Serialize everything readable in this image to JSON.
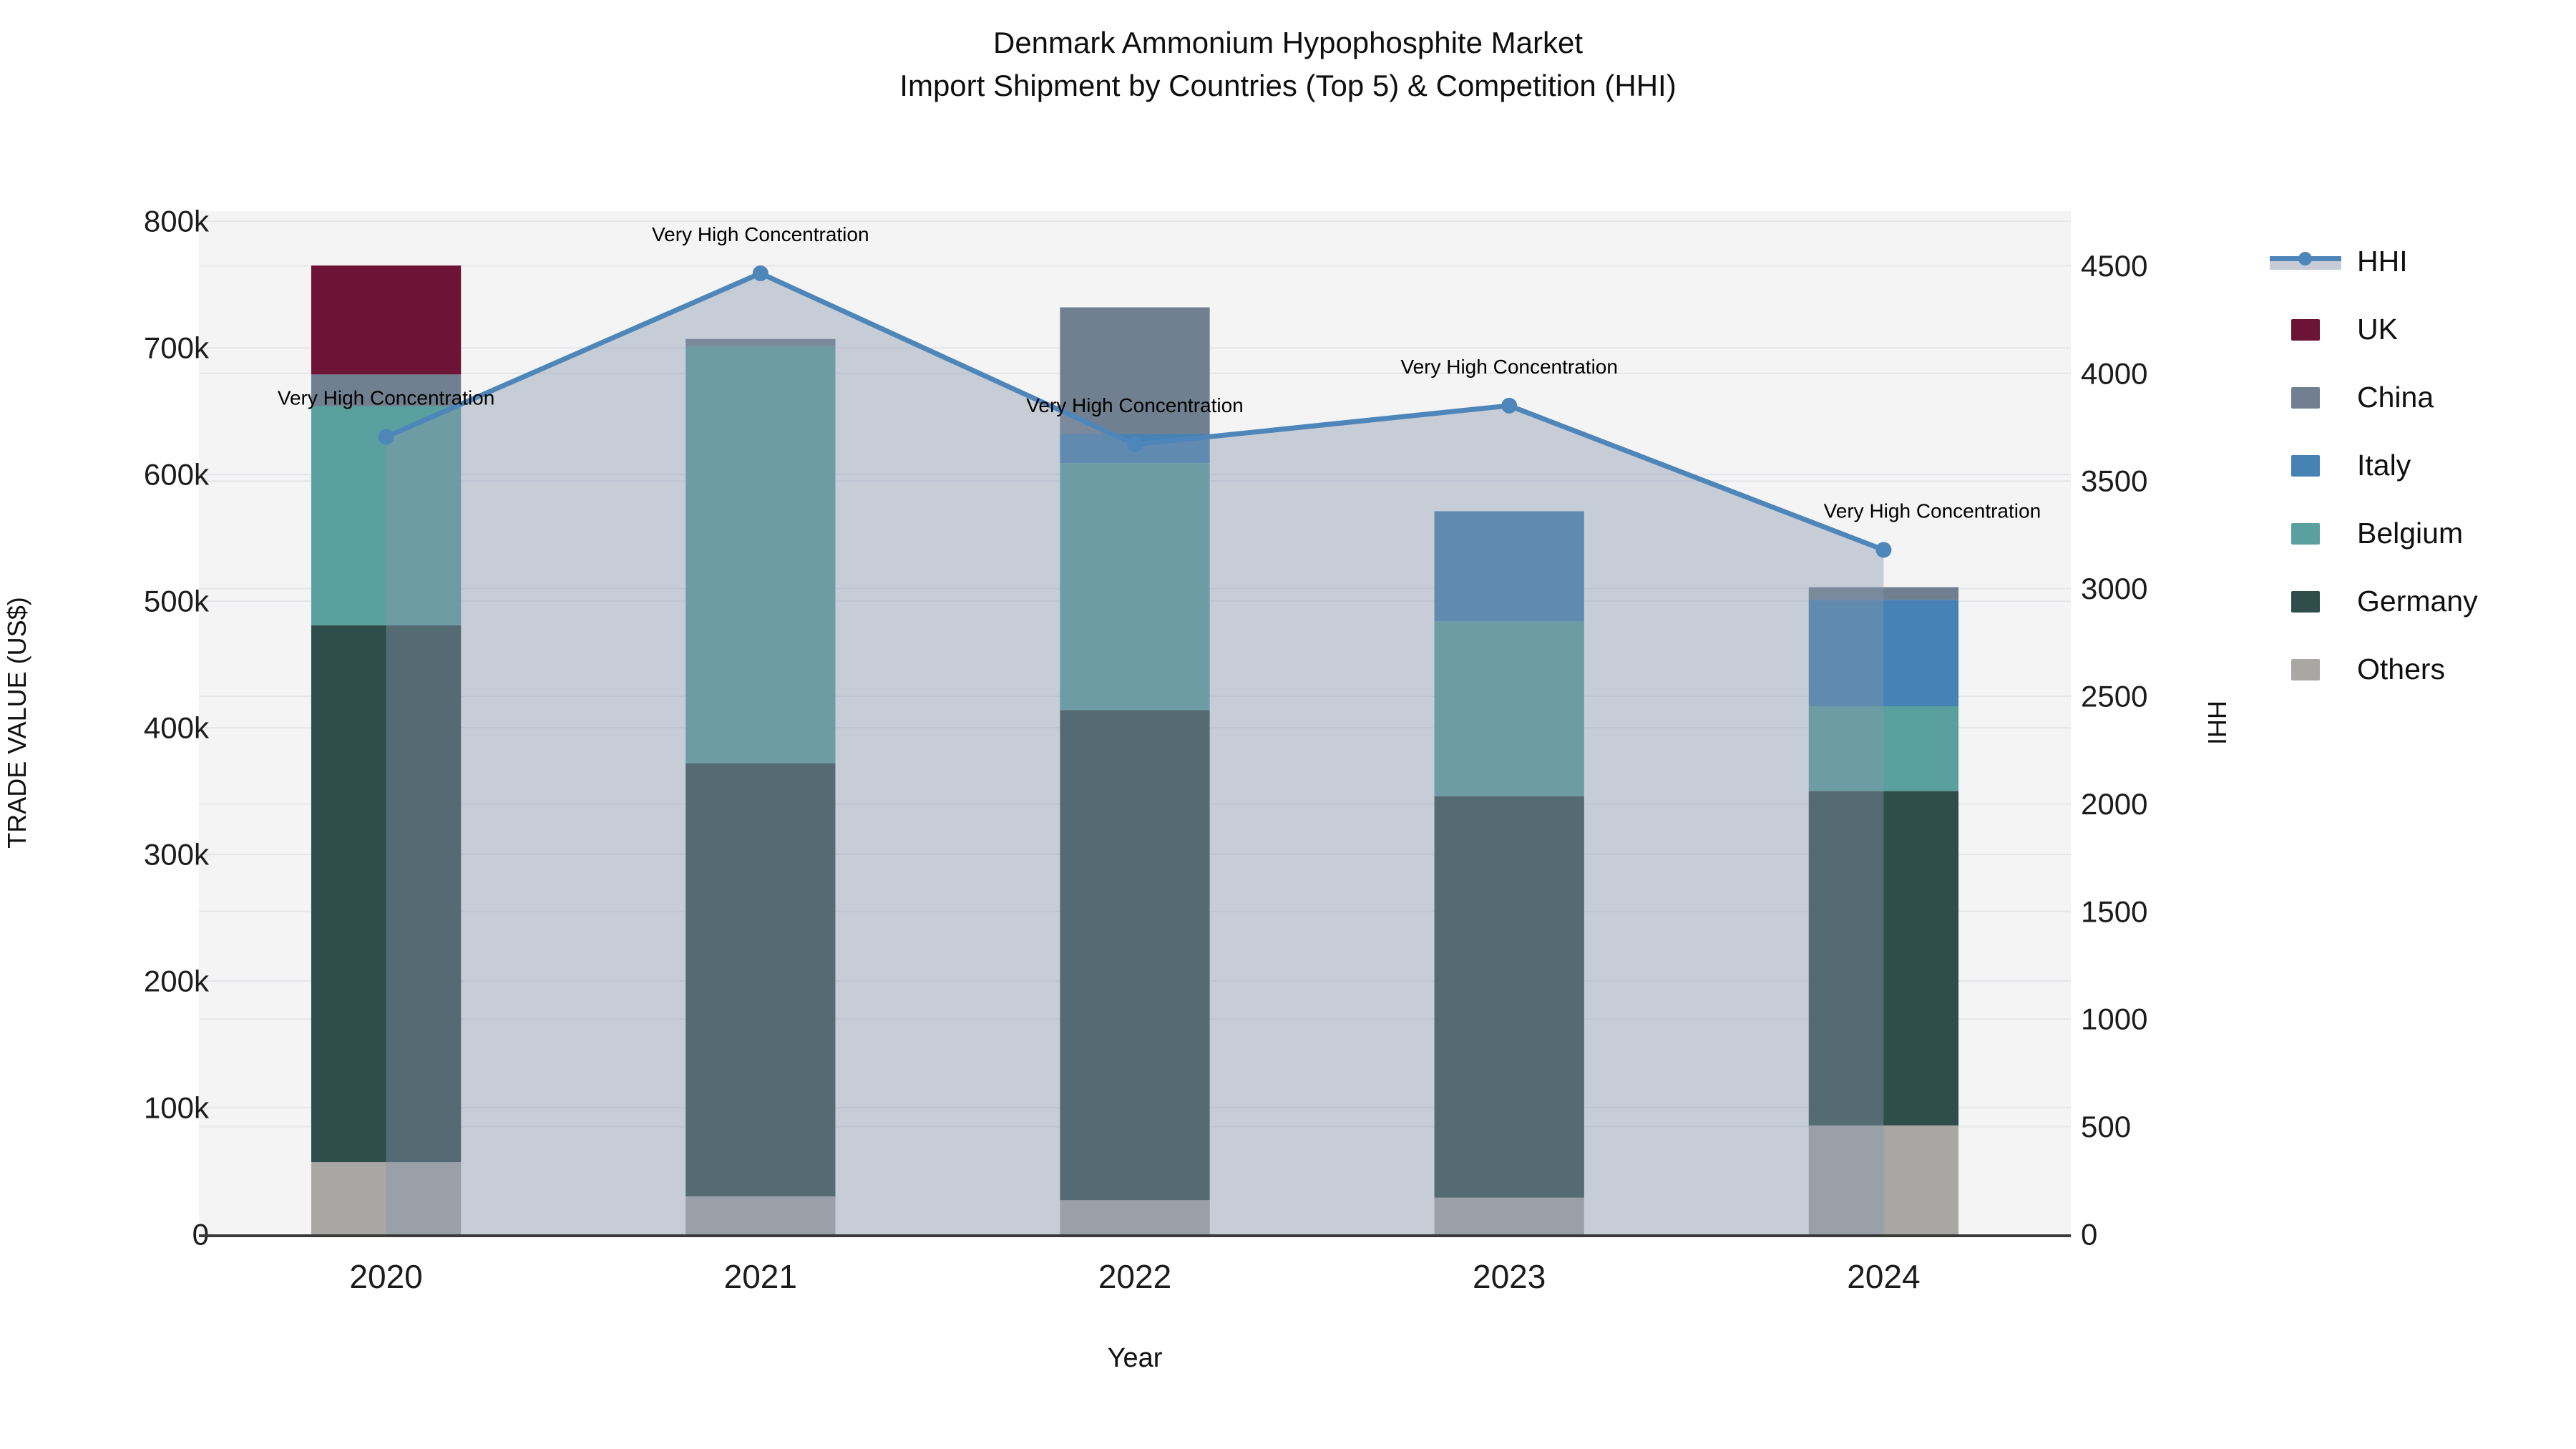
{
  "title": {
    "line1": "Denmark Ammonium Hypophosphite Market",
    "line2": "Import Shipment by Countries (Top 5) & Competition (HHI)"
  },
  "legend": {
    "items": [
      {
        "label": "HHI"
      },
      {
        "label": "UK"
      },
      {
        "label": "China"
      },
      {
        "label": "Italy"
      },
      {
        "label": "Belgium"
      },
      {
        "label": "Germany"
      },
      {
        "label": "Others"
      }
    ]
  },
  "chart_data": {
    "type": "bar+line",
    "title": "Denmark Ammonium Hypophosphite Market Import Shipment by Countries (Top 5) & Competition (HHI)",
    "categories": [
      "2020",
      "2021",
      "2022",
      "2023",
      "2024"
    ],
    "bar_value_unit": "thousand US$",
    "series": [
      {
        "name": "Others",
        "color": "#A8A7A3",
        "values": [
          57,
          30,
          27,
          29,
          86
        ]
      },
      {
        "name": "Germany",
        "color": "#2F4D4A",
        "values": [
          424,
          342,
          387,
          317,
          264
        ]
      },
      {
        "name": "Belgium",
        "color": "#5AA09E",
        "values": [
          173,
          329,
          195,
          138,
          67
        ]
      },
      {
        "name": "Italy",
        "color": "#4682B4",
        "values": [
          0,
          0,
          23,
          87,
          84
        ]
      },
      {
        "name": "China",
        "color": "#708090",
        "values": [
          25,
          6,
          100,
          0,
          10
        ]
      },
      {
        "name": "UK",
        "color": "#6D1436",
        "values": [
          86,
          0,
          0,
          0,
          0
        ]
      }
    ],
    "bar_totals": [
      765,
      707,
      732,
      571,
      511
    ],
    "line_series": {
      "name": "HHI",
      "color": "#4E86BA",
      "fill_color": "rgba(137,149,174,0.42)",
      "values": [
        3705,
        4465,
        3670,
        3850,
        3180
      ]
    },
    "annotations": {
      "text": "Very High Concentration",
      "dx": [
        0,
        0,
        0,
        0,
        68
      ]
    },
    "xlabel": "Year",
    "ylabel_left": "TRADE VALUE (US$)",
    "ylabel_right": "HHI",
    "yticks_left": {
      "labels": [
        "0",
        "100k",
        "200k",
        "300k",
        "400k",
        "500k",
        "600k",
        "700k",
        "800k"
      ],
      "values": [
        0,
        100,
        200,
        300,
        400,
        500,
        600,
        700,
        800
      ]
    },
    "yticks_right": {
      "labels": [
        "0",
        "500",
        "1000",
        "1500",
        "2000",
        "2500",
        "3000",
        "3500",
        "4000",
        "4500"
      ],
      "values": [
        0,
        500,
        1000,
        1500,
        2000,
        2500,
        3000,
        3500,
        4000,
        4500
      ]
    },
    "ylim_left": [
      0,
      808
    ],
    "ylim_right": [
      0,
      4754
    ],
    "grid": true,
    "legend_position": "right",
    "colors": {
      "plot_bg": "#f4f4f5",
      "gridline": "#e6e6ea",
      "axis_line": "#3a3a3a",
      "tick_text": "#1c1c1c",
      "annotation_text": "#000000"
    }
  }
}
